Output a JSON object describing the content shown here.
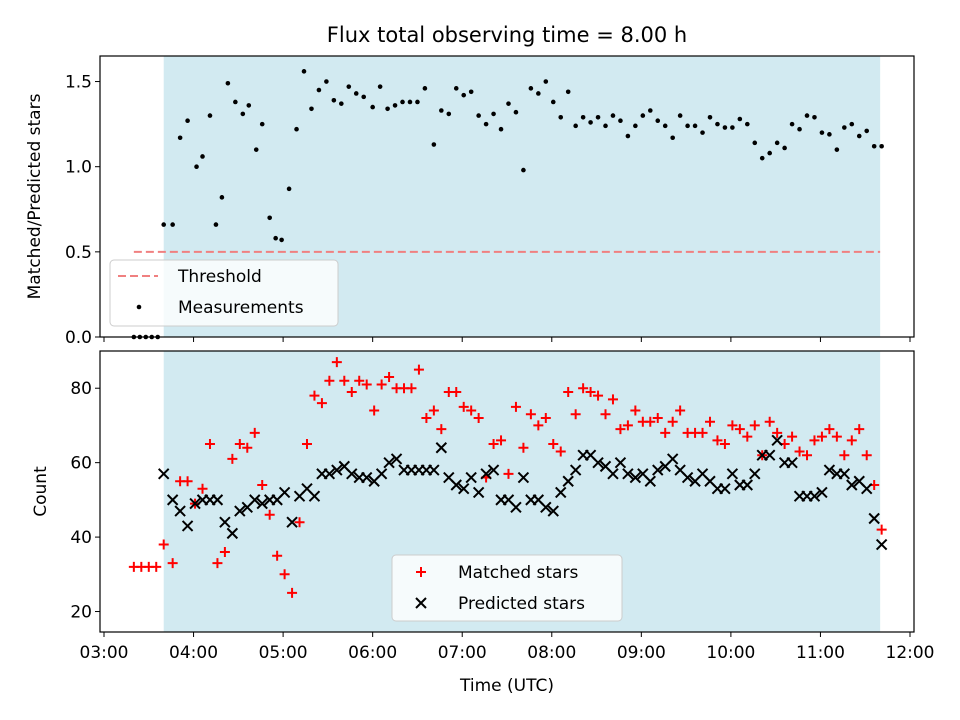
{
  "title": "Flux total observing time = 8.00 h",
  "colors": {
    "window": "#add8e6",
    "threshold": "#f08080",
    "matched": "#ff0000",
    "predicted": "#000000",
    "measurement": "#000000"
  },
  "chart_data": [
    {
      "type": "scatter",
      "ylabel": "Matched/Predicted stars",
      "ylim": [
        0,
        1.65
      ],
      "yticks": [
        "0.0",
        "0.5",
        "1.0",
        "1.5"
      ],
      "xlim": [
        "03:00",
        "12:00"
      ],
      "shaded_window": [
        "03:40",
        "11:40"
      ],
      "threshold": {
        "label": "Threshold",
        "value": 0.5,
        "x_start": "03:20",
        "x_end": "11:40"
      },
      "legend": {
        "placement": "lower-left",
        "entries": [
          "Threshold",
          "Measurements"
        ]
      },
      "series": [
        {
          "name": "Measurements",
          "x": [
            "03:20",
            "03:24",
            "03:28",
            "03:32",
            "03:36",
            "03:40",
            "03:46",
            "03:51",
            "03:56",
            "04:02",
            "04:06",
            "04:11",
            "04:15",
            "04:19",
            "04:23",
            "04:28",
            "04:33",
            "04:37",
            "04:42",
            "04:46",
            "04:51",
            "04:55",
            "04:59",
            "05:04",
            "05:09",
            "05:14",
            "05:19",
            "05:24",
            "05:29",
            "05:34",
            "05:39",
            "05:44",
            "05:49",
            "05:54",
            "06:00",
            "06:05",
            "06:10",
            "06:15",
            "06:20",
            "06:25",
            "06:30",
            "06:35",
            "06:41",
            "06:46",
            "06:51",
            "06:56",
            "07:01",
            "07:06",
            "07:11",
            "07:16",
            "07:21",
            "07:26",
            "07:31",
            "07:36",
            "07:41",
            "07:46",
            "07:51",
            "07:56",
            "08:01",
            "08:06",
            "08:11",
            "08:16",
            "08:21",
            "08:26",
            "08:31",
            "08:36",
            "08:41",
            "08:46",
            "08:51",
            "08:56",
            "09:01",
            "09:06",
            "09:11",
            "09:16",
            "09:21",
            "09:26",
            "09:31",
            "09:36",
            "09:41",
            "09:46",
            "09:51",
            "09:56",
            "10:01",
            "10:06",
            "10:11",
            "10:16",
            "10:21",
            "10:26",
            "10:31",
            "10:36",
            "10:41",
            "10:46",
            "10:51",
            "10:56",
            "11:01",
            "11:06",
            "11:11",
            "11:16",
            "11:21",
            "11:26",
            "11:31",
            "11:36",
            "11:41"
          ],
          "y": [
            0.0,
            0.0,
            0.0,
            0.0,
            0.0,
            0.66,
            0.66,
            1.17,
            1.27,
            1.0,
            1.06,
            1.3,
            0.66,
            0.82,
            1.49,
            1.38,
            1.31,
            1.36,
            1.1,
            1.25,
            0.7,
            0.58,
            0.57,
            0.87,
            1.22,
            1.56,
            1.34,
            1.45,
            1.5,
            1.39,
            1.37,
            1.47,
            1.43,
            1.41,
            1.35,
            1.47,
            1.34,
            1.36,
            1.38,
            1.38,
            1.38,
            1.46,
            1.13,
            1.33,
            1.31,
            1.46,
            1.42,
            1.44,
            1.3,
            1.25,
            1.31,
            1.22,
            1.37,
            1.32,
            0.98,
            1.46,
            1.43,
            1.5,
            1.38,
            1.29,
            1.44,
            1.24,
            1.29,
            1.26,
            1.29,
            1.24,
            1.3,
            1.27,
            1.18,
            1.24,
            1.3,
            1.33,
            1.27,
            1.24,
            1.17,
            1.3,
            1.24,
            1.24,
            1.2,
            1.29,
            1.25,
            1.23,
            1.23,
            1.28,
            1.25,
            1.14,
            1.05,
            1.08,
            1.14,
            1.11,
            1.25,
            1.22,
            1.3,
            1.29,
            1.2,
            1.19,
            1.1,
            1.23,
            1.25,
            1.18,
            1.21,
            1.12,
            1.12
          ]
        }
      ]
    },
    {
      "type": "scatter",
      "xlabel": "Time (UTC)",
      "ylabel": "Count",
      "ylim": [
        14.5,
        90
      ],
      "yticks": [
        "20",
        "40",
        "60",
        "80"
      ],
      "xlim": [
        "03:00",
        "12:00"
      ],
      "xticks": [
        "03:00",
        "04:00",
        "05:00",
        "06:00",
        "07:00",
        "08:00",
        "09:00",
        "10:00",
        "11:00",
        "12:00"
      ],
      "shaded_window": [
        "03:40",
        "11:40"
      ],
      "legend": {
        "placement": "lower-center",
        "entries": [
          "Matched stars",
          "Predicted stars"
        ]
      },
      "series": [
        {
          "name": "Matched stars",
          "marker": "plus",
          "x": [
            "03:20",
            "03:25",
            "03:30",
            "03:35",
            "03:40",
            "03:46",
            "03:51",
            "03:56",
            "04:01",
            "04:06",
            "04:11",
            "04:16",
            "04:21",
            "04:26",
            "04:31",
            "04:36",
            "04:41",
            "04:46",
            "04:51",
            "04:56",
            "05:01",
            "05:06",
            "05:11",
            "05:16",
            "05:21",
            "05:26",
            "05:31",
            "05:36",
            "05:41",
            "05:46",
            "05:51",
            "05:56",
            "06:01",
            "06:06",
            "06:11",
            "06:16",
            "06:21",
            "06:26",
            "06:31",
            "06:36",
            "06:41",
            "06:46",
            "06:51",
            "06:56",
            "07:01",
            "07:06",
            "07:11",
            "07:16",
            "07:21",
            "07:26",
            "07:31",
            "07:36",
            "07:41",
            "07:46",
            "07:51",
            "07:56",
            "08:01",
            "08:06",
            "08:11",
            "08:16",
            "08:21",
            "08:26",
            "08:31",
            "08:36",
            "08:41",
            "08:46",
            "08:51",
            "08:56",
            "09:01",
            "09:06",
            "09:11",
            "09:16",
            "09:21",
            "09:26",
            "09:31",
            "09:36",
            "09:41",
            "09:46",
            "09:51",
            "09:56",
            "10:01",
            "10:06",
            "10:11",
            "10:16",
            "10:21",
            "10:26",
            "10:31",
            "10:36",
            "10:41",
            "10:46",
            "10:51",
            "10:56",
            "11:01",
            "11:06",
            "11:11",
            "11:16",
            "11:21",
            "11:26",
            "11:31",
            "11:36",
            "11:41"
          ],
          "y": [
            32,
            32,
            32,
            32,
            38,
            33,
            55,
            55,
            49,
            53,
            65,
            33,
            36,
            61,
            65,
            64,
            68,
            54,
            46,
            35,
            30,
            25,
            44,
            65,
            78,
            76,
            82,
            87,
            82,
            79,
            82,
            81,
            74,
            81,
            83,
            80,
            80,
            80,
            85,
            72,
            74,
            69,
            79,
            79,
            75,
            74,
            72,
            56,
            65,
            66,
            57,
            75,
            64,
            73,
            70,
            72,
            65,
            63,
            79,
            73,
            80,
            79,
            78,
            73,
            77,
            69,
            70,
            74,
            71,
            71,
            72,
            68,
            71,
            74,
            68,
            68,
            68,
            71,
            66,
            65,
            70,
            69,
            67,
            70,
            62,
            71,
            68,
            65,
            67,
            63,
            62,
            66,
            67,
            69,
            67,
            62,
            66,
            69,
            62,
            54,
            42
          ]
        },
        {
          "name": "Predicted stars",
          "marker": "x",
          "x": [
            "03:40",
            "03:46",
            "03:51",
            "03:56",
            "04:01",
            "04:06",
            "04:11",
            "04:16",
            "04:21",
            "04:26",
            "04:31",
            "04:36",
            "04:41",
            "04:46",
            "04:51",
            "04:56",
            "05:01",
            "05:06",
            "05:11",
            "05:16",
            "05:21",
            "05:26",
            "05:31",
            "05:36",
            "05:41",
            "05:46",
            "05:51",
            "05:56",
            "06:01",
            "06:06",
            "06:11",
            "06:16",
            "06:21",
            "06:26",
            "06:31",
            "06:36",
            "06:41",
            "06:46",
            "06:51",
            "06:56",
            "07:01",
            "07:06",
            "07:11",
            "07:16",
            "07:21",
            "07:26",
            "07:31",
            "07:36",
            "07:41",
            "07:46",
            "07:51",
            "07:56",
            "08:01",
            "08:06",
            "08:11",
            "08:16",
            "08:21",
            "08:26",
            "08:31",
            "08:36",
            "08:41",
            "08:46",
            "08:51",
            "08:56",
            "09:01",
            "09:06",
            "09:11",
            "09:16",
            "09:21",
            "09:26",
            "09:31",
            "09:36",
            "09:41",
            "09:46",
            "09:51",
            "09:56",
            "10:01",
            "10:06",
            "10:11",
            "10:16",
            "10:21",
            "10:26",
            "10:31",
            "10:36",
            "10:41",
            "10:46",
            "10:51",
            "10:56",
            "11:01",
            "11:06",
            "11:11",
            "11:16",
            "11:21",
            "11:26",
            "11:31",
            "11:36",
            "11:41"
          ],
          "y": [
            57,
            50,
            47,
            43,
            49,
            50,
            50,
            50,
            44,
            41,
            47,
            48,
            50,
            49,
            50,
            50,
            52,
            44,
            51,
            53,
            51,
            57,
            57,
            58,
            59,
            57,
            56,
            56,
            55,
            57,
            60,
            61,
            58,
            58,
            58,
            58,
            58,
            64,
            56,
            54,
            53,
            56,
            52,
            57,
            58,
            50,
            50,
            48,
            56,
            50,
            50,
            48,
            47,
            52,
            55,
            58,
            62,
            62,
            60,
            59,
            57,
            60,
            57,
            56,
            57,
            55,
            58,
            59,
            61,
            58,
            56,
            55,
            57,
            55,
            53,
            53,
            57,
            54,
            54,
            57,
            62,
            62,
            66,
            60,
            60,
            51,
            51,
            51,
            52,
            58,
            57,
            57,
            54,
            55,
            53,
            45,
            38
          ]
        }
      ]
    }
  ]
}
